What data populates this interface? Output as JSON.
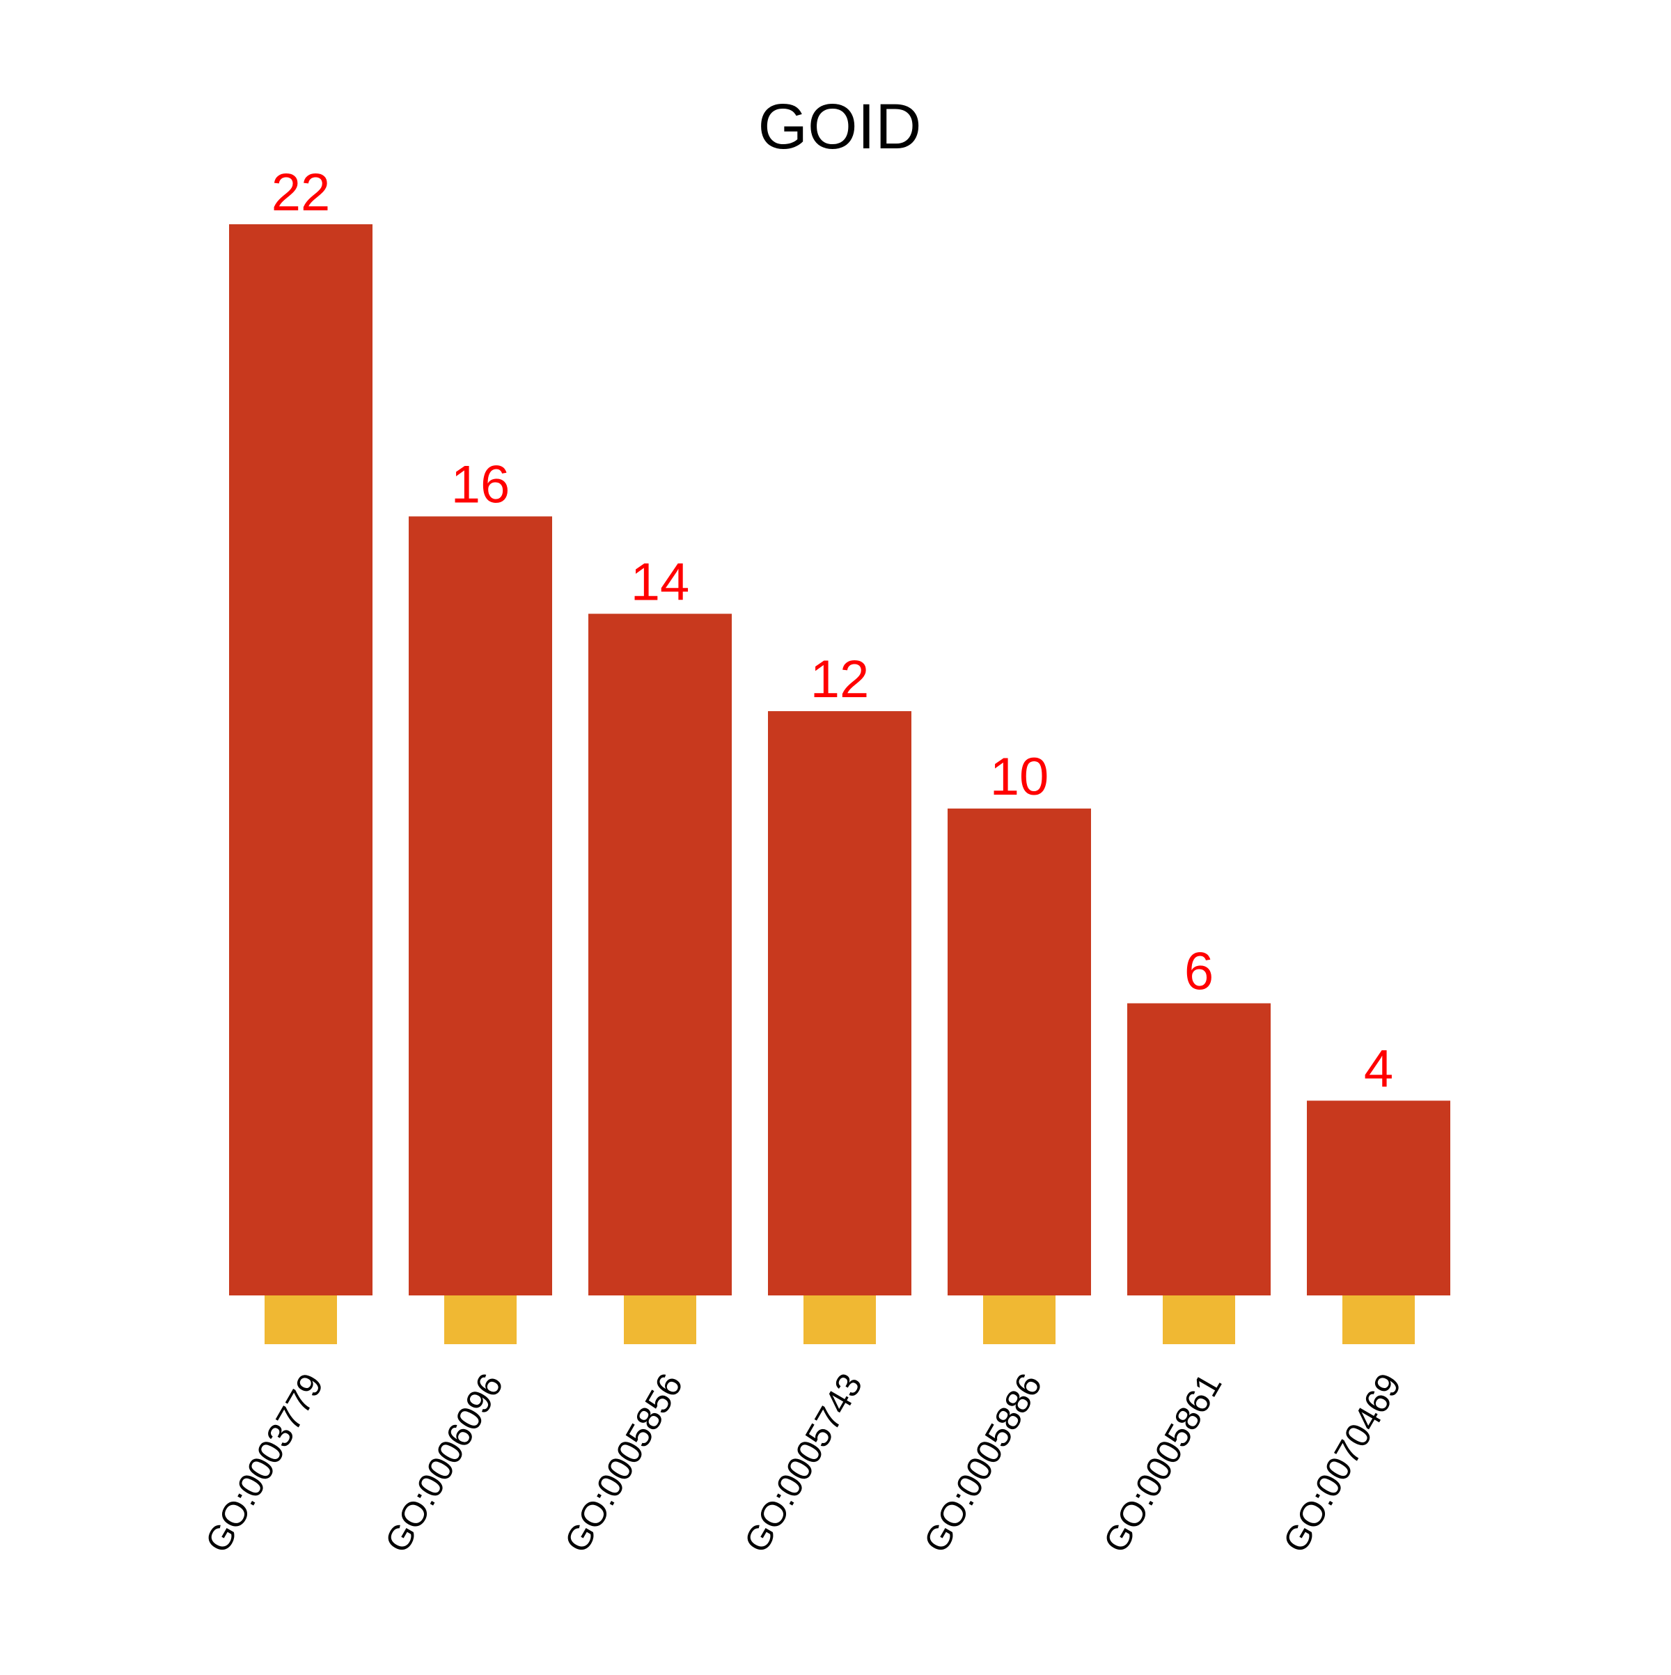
{
  "chart_data": {
    "type": "bar",
    "title": "GOID",
    "xlabel": "",
    "ylabel": "",
    "categories": [
      "GO:0003779",
      "GO:0006096",
      "GO:0005856",
      "GO:0005743",
      "GO:0005886",
      "GO:0005861",
      "GO:0070469"
    ],
    "values": [
      22,
      16,
      14,
      12,
      10,
      6,
      4
    ],
    "ylim": [
      0,
      22
    ],
    "grid": false,
    "legend": "none",
    "colors": {
      "bar": "#C8391E",
      "marker": "#F0B833",
      "value_label": "#FF0000",
      "title": "#000000",
      "tick_label": "#000000"
    }
  }
}
